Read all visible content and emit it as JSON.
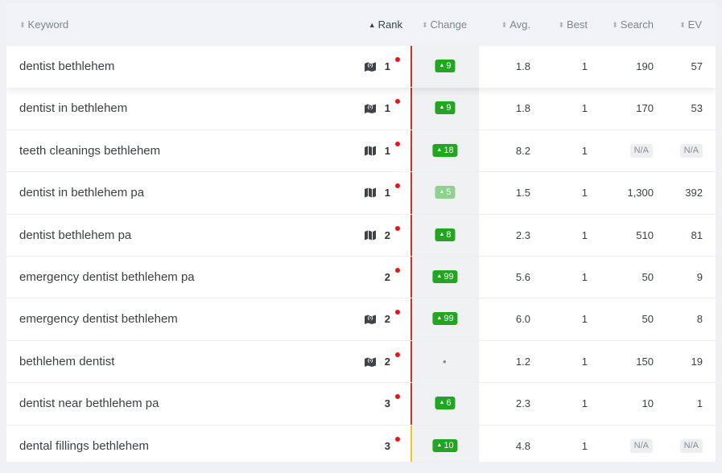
{
  "header": {
    "keyword": "Keyword",
    "rank": "Rank",
    "change": "Change",
    "avg": "Avg.",
    "best": "Best",
    "search": "Search",
    "ev": "EV"
  },
  "sort_up_glyph": "▲",
  "sort_both_glyph": "⬍",
  "change_up_glyph": "▲",
  "colors": {
    "rank_dot": "#e8131b",
    "change_badge": "#22a622",
    "change_badge_light": "#8fd18f",
    "bar_red": "#c0392b",
    "bar_yellow": "#f2c12e"
  },
  "rows": [
    {
      "keyword": "dentist bethlehem",
      "feature": "map-pin-icon",
      "rank": "1",
      "change": "9",
      "change_style": "normal",
      "avg": "1.8",
      "best": "1",
      "search": "190",
      "ev": "57",
      "bar": "red"
    },
    {
      "keyword": "dentist in bethlehem",
      "feature": "map-pin-icon",
      "rank": "1",
      "change": "9",
      "change_style": "normal",
      "avg": "1.8",
      "best": "1",
      "search": "170",
      "ev": "53",
      "bar": "red"
    },
    {
      "keyword": "teeth cleanings bethlehem",
      "feature": "map-icon",
      "rank": "1",
      "change": "18",
      "change_style": "normal",
      "avg": "8.2",
      "best": "1",
      "search": "N/A",
      "ev": "N/A",
      "bar": "red"
    },
    {
      "keyword": "dentist in bethlehem pa",
      "feature": "map-icon",
      "rank": "1",
      "change": "5",
      "change_style": "light",
      "avg": "1.5",
      "best": "1",
      "search": "1,300",
      "ev": "392",
      "bar": "red"
    },
    {
      "keyword": "dentist bethlehem pa",
      "feature": "map-icon",
      "rank": "2",
      "change": "8",
      "change_style": "normal",
      "avg": "2.3",
      "best": "1",
      "search": "510",
      "ev": "81",
      "bar": "red"
    },
    {
      "keyword": "emergency dentist bethlehem pa",
      "feature": "",
      "rank": "2",
      "change": "99",
      "change_style": "normal",
      "avg": "5.6",
      "best": "1",
      "search": "50",
      "ev": "9",
      "bar": "red"
    },
    {
      "keyword": "emergency dentist bethlehem",
      "feature": "map-pin-icon",
      "rank": "2",
      "change": "99",
      "change_style": "normal",
      "avg": "6.0",
      "best": "1",
      "search": "50",
      "ev": "8",
      "bar": "red"
    },
    {
      "keyword": "bethlehem dentist",
      "feature": "map-pin-icon",
      "rank": "2",
      "change": "•",
      "change_style": "neutral",
      "avg": "1.2",
      "best": "1",
      "search": "150",
      "ev": "19",
      "bar": "red"
    },
    {
      "keyword": "dentist near bethlehem pa",
      "feature": "",
      "rank": "3",
      "change": "6",
      "change_style": "normal",
      "avg": "2.3",
      "best": "1",
      "search": "10",
      "ev": "1",
      "bar": "red"
    },
    {
      "keyword": "dental fillings bethlehem",
      "feature": "",
      "rank": "3",
      "change": "10",
      "change_style": "normal",
      "avg": "4.8",
      "best": "1",
      "search": "N/A",
      "ev": "N/A",
      "bar": "yellow"
    }
  ]
}
